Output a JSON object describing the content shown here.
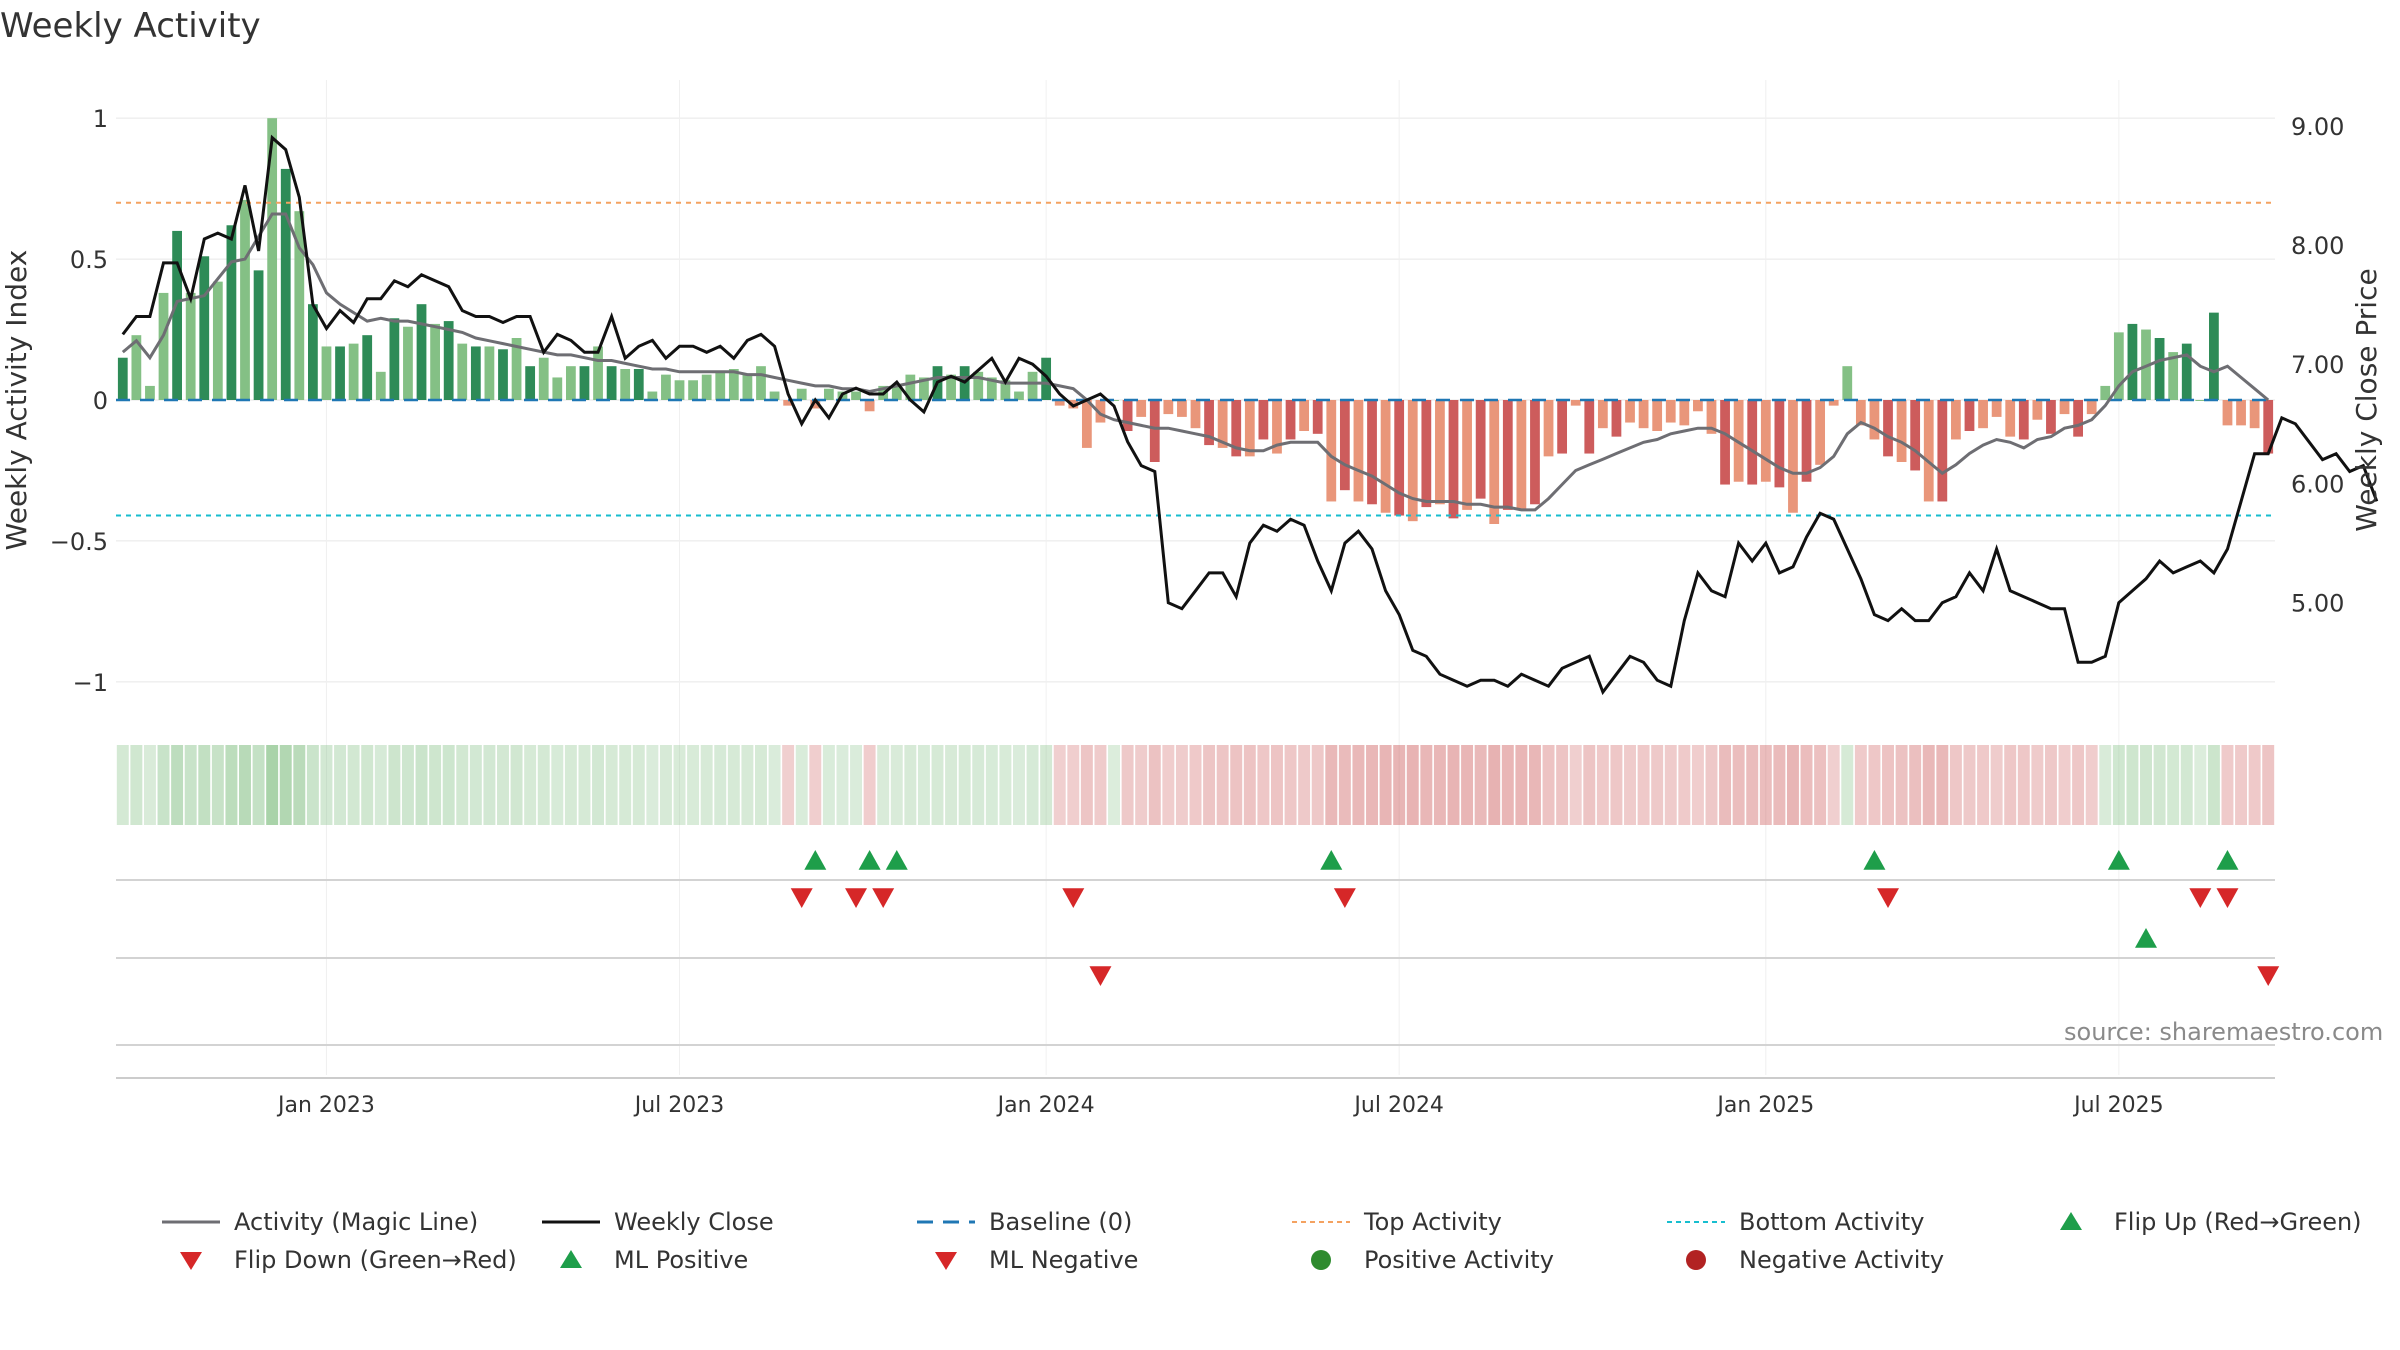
{
  "title": "Weekly Activity",
  "watermark": "source: sharemaestro.com",
  "colors": {
    "pos_dark": "#2e8b57",
    "pos_light": "#84c085",
    "neg_dark": "#cd5c5c",
    "neg_light": "#e9967a",
    "magic": "#6e6e73",
    "close": "#111111",
    "baseline": "#1f77b4",
    "top": "#f4a261",
    "bottom": "#17becf",
    "flip_up": "#1e9e4a",
    "flip_down": "#d62728",
    "grid": "#e6e6e6"
  },
  "chart_data": {
    "type": "bar+line",
    "title": "Weekly Activity",
    "ylabel_left": "Weekly Activity Index",
    "ylabel_right": "Weekly Close Price",
    "ylim_left": [
      -1.1,
      1.1
    ],
    "ylim_right": [
      4.1,
      9.3
    ],
    "left_ticks": [
      {
        "value": 1,
        "label": "1"
      },
      {
        "value": 0.5,
        "label": "0.5"
      },
      {
        "value": 0,
        "label": "0"
      },
      {
        "value": -0.5,
        "label": "−0.5"
      },
      {
        "value": -1,
        "label": "−1"
      }
    ],
    "right_ticks": [
      {
        "value": 9,
        "label": "9.00"
      },
      {
        "value": 8,
        "label": "8.00"
      },
      {
        "value": 7,
        "label": "7.00"
      },
      {
        "value": 6,
        "label": "6.00"
      },
      {
        "value": 5,
        "label": "5.00"
      }
    ],
    "x_range_weeks": [
      0,
      159
    ],
    "x_ticks": [
      {
        "week": 15,
        "label": "Jan 2023"
      },
      {
        "week": 41,
        "label": "Jul 2023"
      },
      {
        "week": 68,
        "label": "Jan 2024"
      },
      {
        "week": 94,
        "label": "Jul 2024"
      },
      {
        "week": 121,
        "label": "Jan 2025"
      },
      {
        "week": 147,
        "label": "Jul 2025"
      }
    ],
    "top_activity": 0.7,
    "bottom_activity": -0.41,
    "activity": [
      0.15,
      0.23,
      0.05,
      0.38,
      0.6,
      0.38,
      0.51,
      0.42,
      0.62,
      0.71,
      0.46,
      1.0,
      0.82,
      0.67,
      0.34,
      0.19,
      0.19,
      0.2,
      0.23,
      0.1,
      0.29,
      0.26,
      0.34,
      0.27,
      0.28,
      0.2,
      0.19,
      0.19,
      0.18,
      0.22,
      0.12,
      0.15,
      0.08,
      0.12,
      0.12,
      0.19,
      0.12,
      0.11,
      0.11,
      0.03,
      0.09,
      0.07,
      0.07,
      0.09,
      0.1,
      0.11,
      0.09,
      0.12,
      0.03,
      -0.02,
      0.04,
      -0.03,
      0.04,
      0.03,
      0.03,
      -0.04,
      0.05,
      0.05,
      0.09,
      0.08,
      0.12,
      0.09,
      0.12,
      0.1,
      0.08,
      0.07,
      0.03,
      0.1,
      0.15,
      -0.02,
      -0.03,
      -0.17,
      -0.08,
      0.0,
      -0.11,
      -0.06,
      -0.22,
      -0.05,
      -0.06,
      -0.1,
      -0.16,
      -0.17,
      -0.2,
      -0.2,
      -0.14,
      -0.19,
      -0.14,
      -0.11,
      -0.12,
      -0.36,
      -0.32,
      -0.36,
      -0.37,
      -0.4,
      -0.41,
      -0.43,
      -0.38,
      -0.37,
      -0.42,
      -0.39,
      -0.35,
      -0.44,
      -0.39,
      -0.39,
      -0.37,
      -0.2,
      -0.19,
      -0.02,
      -0.19,
      -0.1,
      -0.13,
      -0.08,
      -0.1,
      -0.11,
      -0.08,
      -0.09,
      -0.04,
      -0.12,
      -0.3,
      -0.29,
      -0.3,
      -0.29,
      -0.31,
      -0.4,
      -0.29,
      -0.23,
      -0.02,
      0.12,
      -0.09,
      -0.14,
      -0.2,
      -0.22,
      -0.25,
      -0.36,
      -0.36,
      -0.14,
      -0.11,
      -0.1,
      -0.06,
      -0.13,
      -0.14,
      -0.07,
      -0.12,
      -0.05,
      -0.13,
      -0.05,
      0.05,
      0.24,
      0.27,
      0.25,
      0.22,
      0.17,
      0.2,
      0.0,
      0.31,
      -0.09,
      -0.09,
      -0.1,
      -0.19
    ],
    "magic_line": [
      0.17,
      0.21,
      0.15,
      0.23,
      0.35,
      0.36,
      0.37,
      0.43,
      0.49,
      0.5,
      0.58,
      0.66,
      0.66,
      0.54,
      0.48,
      0.38,
      0.34,
      0.31,
      0.28,
      0.29,
      0.28,
      0.28,
      0.27,
      0.26,
      0.25,
      0.24,
      0.22,
      0.21,
      0.2,
      0.19,
      0.18,
      0.17,
      0.16,
      0.16,
      0.15,
      0.14,
      0.14,
      0.13,
      0.12,
      0.11,
      0.11,
      0.1,
      0.1,
      0.1,
      0.1,
      0.1,
      0.09,
      0.09,
      0.08,
      0.07,
      0.06,
      0.05,
      0.05,
      0.04,
      0.04,
      0.03,
      0.04,
      0.05,
      0.06,
      0.07,
      0.08,
      0.08,
      0.08,
      0.08,
      0.07,
      0.06,
      0.06,
      0.06,
      0.06,
      0.05,
      0.04,
      0.0,
      -0.05,
      -0.07,
      -0.08,
      -0.09,
      -0.1,
      -0.1,
      -0.11,
      -0.12,
      -0.13,
      -0.15,
      -0.17,
      -0.18,
      -0.18,
      -0.16,
      -0.15,
      -0.15,
      -0.15,
      -0.2,
      -0.23,
      -0.25,
      -0.27,
      -0.3,
      -0.33,
      -0.35,
      -0.36,
      -0.36,
      -0.36,
      -0.37,
      -0.37,
      -0.38,
      -0.38,
      -0.39,
      -0.39,
      -0.35,
      -0.3,
      -0.25,
      -0.23,
      -0.21,
      -0.19,
      -0.17,
      -0.15,
      -0.14,
      -0.12,
      -0.11,
      -0.1,
      -0.1,
      -0.12,
      -0.15,
      -0.18,
      -0.21,
      -0.24,
      -0.26,
      -0.26,
      -0.24,
      -0.2,
      -0.12,
      -0.08,
      -0.1,
      -0.13,
      -0.15,
      -0.18,
      -0.22,
      -0.26,
      -0.23,
      -0.19,
      -0.16,
      -0.14,
      -0.15,
      -0.17,
      -0.14,
      -0.13,
      -0.1,
      -0.09,
      -0.07,
      -0.02,
      0.05,
      0.1,
      0.12,
      0.14,
      0.15,
      0.16,
      0.12,
      0.1,
      0.12,
      0.08,
      0.04,
      0.0
    ],
    "weekly_close": [
      7.25,
      7.4,
      7.4,
      7.85,
      7.85,
      7.55,
      8.05,
      8.1,
      8.05,
      8.5,
      7.95,
      8.9,
      8.8,
      8.4,
      7.5,
      7.3,
      7.45,
      7.35,
      7.55,
      7.55,
      7.7,
      7.65,
      7.75,
      7.7,
      7.65,
      7.45,
      7.4,
      7.4,
      7.35,
      7.4,
      7.4,
      7.1,
      7.25,
      7.2,
      7.1,
      7.1,
      7.4,
      7.05,
      7.15,
      7.2,
      7.05,
      7.15,
      7.15,
      7.1,
      7.15,
      7.05,
      7.2,
      7.25,
      7.15,
      6.75,
      6.5,
      6.7,
      6.55,
      6.75,
      6.8,
      6.75,
      6.75,
      6.85,
      6.7,
      6.6,
      6.85,
      6.9,
      6.85,
      6.95,
      7.05,
      6.85,
      7.05,
      7.0,
      6.9,
      6.75,
      6.65,
      6.7,
      6.75,
      6.65,
      6.35,
      6.15,
      6.1,
      5.0,
      4.95,
      5.1,
      5.25,
      5.25,
      5.05,
      5.5,
      5.65,
      5.6,
      5.7,
      5.65,
      5.35,
      5.1,
      5.5,
      5.6,
      5.45,
      5.1,
      4.9,
      4.6,
      4.55,
      4.4,
      4.35,
      4.3,
      4.35,
      4.35,
      4.3,
      4.4,
      4.35,
      4.3,
      4.45,
      4.5,
      4.55,
      4.25,
      4.4,
      4.55,
      4.5,
      4.35,
      4.3,
      4.85,
      5.25,
      5.1,
      5.05,
      5.5,
      5.35,
      5.5,
      5.25,
      5.3,
      5.55,
      5.75,
      5.7,
      5.45,
      5.2,
      4.9,
      4.85,
      4.95,
      4.85,
      4.85,
      5.0,
      5.05,
      5.25,
      5.1,
      5.45,
      5.1,
      5.05,
      5.0,
      4.95,
      4.95,
      4.5,
      4.5,
      4.55,
      5.0,
      5.1,
      5.2,
      5.35,
      5.25,
      5.3,
      5.35,
      5.25,
      5.45,
      5.85,
      6.25,
      6.25,
      6.55,
      6.5,
      6.35,
      6.2,
      6.25,
      6.1,
      6.15,
      5.85
    ],
    "activity_strip_note": "per-week shaded cells mirror activity sign & magnitude",
    "flip_up_weeks": [
      51,
      55,
      57,
      89,
      129,
      147,
      155
    ],
    "flip_down_weeks": [
      50,
      54,
      56,
      70,
      90,
      130,
      153,
      155
    ],
    "ml_positive_weeks": [
      149
    ],
    "ml_negative_weeks": [
      72,
      158
    ]
  },
  "legend": [
    {
      "key": "magic",
      "label": "Activity (Magic Line)"
    },
    {
      "key": "close",
      "label": "Weekly Close"
    },
    {
      "key": "baseline",
      "label": "Baseline (0)"
    },
    {
      "key": "top",
      "label": "Top Activity"
    },
    {
      "key": "bottom",
      "label": "Bottom Activity"
    },
    {
      "key": "flip_up",
      "label": "Flip Up (Red→Green)"
    },
    {
      "key": "flip_down",
      "label": "Flip Down (Green→Red)"
    },
    {
      "key": "ml_pos",
      "label": "ML Positive"
    },
    {
      "key": "ml_neg",
      "label": "ML Negative"
    },
    {
      "key": "pos_act",
      "label": "Positive Activity"
    },
    {
      "key": "neg_act",
      "label": "Negative Activity"
    }
  ]
}
